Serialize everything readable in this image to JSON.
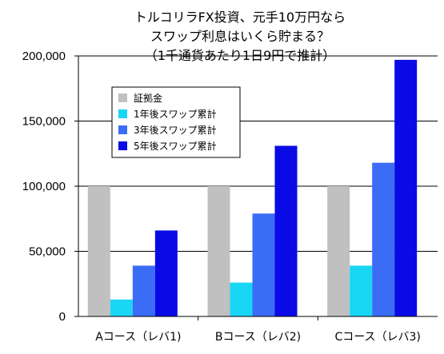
{
  "chart_data": {
    "type": "bar",
    "title_lines": [
      "トルコリラFX投資、元手10万円なら",
      "スワップ利息はいくら貯まる？",
      "（1千通貨あたり1日9円で推計）"
    ],
    "categories": [
      "Aコース（レバ1)",
      "Bコース（レバ2)",
      "Cコース（レバ3)"
    ],
    "series": [
      {
        "name": "証拠金",
        "color": "#c0c0c0",
        "values": [
          100000,
          100000,
          100000
        ]
      },
      {
        "name": "1年後スワップ累計",
        "color": "#1ad6f5",
        "values": [
          13000,
          26000,
          39000
        ]
      },
      {
        "name": "3年後スワップ累計",
        "color": "#3b6cf5",
        "values": [
          39000,
          79000,
          118000
        ]
      },
      {
        "name": "5年後スワップ累計",
        "color": "#0a0ae6",
        "values": [
          66000,
          131000,
          197000
        ]
      }
    ],
    "ylim": [
      0,
      200000
    ],
    "yticks": [
      "0",
      "50,000",
      "100,000",
      "150,000",
      "200,000"
    ],
    "ytick_values": [
      0,
      50000,
      100000,
      150000,
      200000
    ],
    "grid": true,
    "legend_position": "top-left"
  }
}
